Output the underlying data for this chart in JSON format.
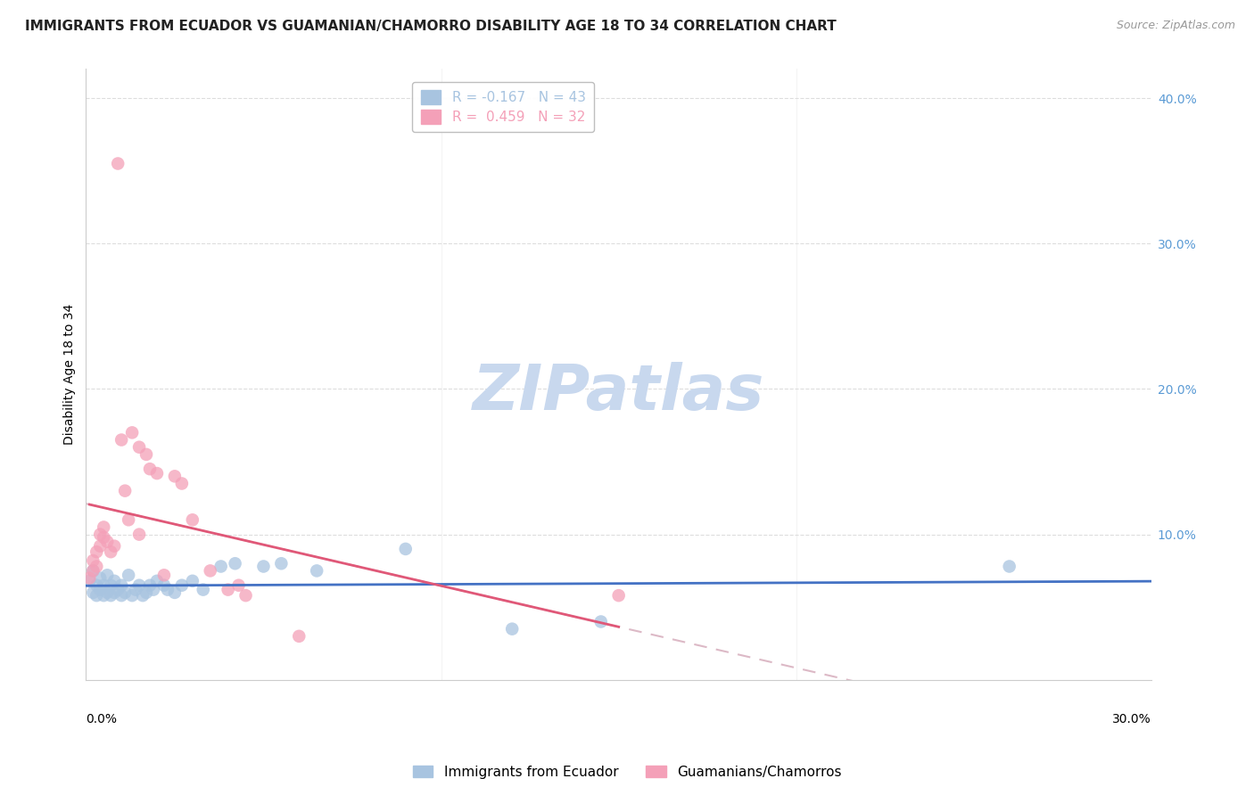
{
  "title": "IMMIGRANTS FROM ECUADOR VS GUAMANIAN/CHAMORRO DISABILITY AGE 18 TO 34 CORRELATION CHART",
  "source": "Source: ZipAtlas.com",
  "ylabel": "Disability Age 18 to 34",
  "xlabel_bottom_left": "0.0%",
  "xlabel_bottom_right": "30.0%",
  "watermark": "ZIPatlas",
  "legend_items": [
    {
      "label": "R = -0.167   N = 43",
      "color": "#a8c4e0"
    },
    {
      "label": "R =  0.459   N = 32",
      "color": "#f4a0b8"
    }
  ],
  "xlim": [
    0.0,
    0.3
  ],
  "ylim": [
    0.0,
    0.42
  ],
  "ecuador_color": "#a8c4e0",
  "guam_color": "#f4a0b8",
  "ecuador_line_color": "#4472c4",
  "guam_line_color": "#e05878",
  "guam_dash_color": "#d4a8b8",
  "ecuador_scatter": [
    [
      0.001,
      0.068
    ],
    [
      0.002,
      0.06
    ],
    [
      0.002,
      0.075
    ],
    [
      0.003,
      0.058
    ],
    [
      0.003,
      0.065
    ],
    [
      0.004,
      0.062
    ],
    [
      0.004,
      0.07
    ],
    [
      0.005,
      0.058
    ],
    [
      0.005,
      0.065
    ],
    [
      0.006,
      0.06
    ],
    [
      0.006,
      0.072
    ],
    [
      0.007,
      0.065
    ],
    [
      0.007,
      0.058
    ],
    [
      0.008,
      0.06
    ],
    [
      0.008,
      0.068
    ],
    [
      0.009,
      0.062
    ],
    [
      0.01,
      0.058
    ],
    [
      0.01,
      0.065
    ],
    [
      0.011,
      0.06
    ],
    [
      0.012,
      0.072
    ],
    [
      0.013,
      0.058
    ],
    [
      0.014,
      0.062
    ],
    [
      0.015,
      0.065
    ],
    [
      0.016,
      0.058
    ],
    [
      0.017,
      0.06
    ],
    [
      0.018,
      0.065
    ],
    [
      0.019,
      0.062
    ],
    [
      0.02,
      0.068
    ],
    [
      0.022,
      0.065
    ],
    [
      0.023,
      0.062
    ],
    [
      0.025,
      0.06
    ],
    [
      0.027,
      0.065
    ],
    [
      0.03,
      0.068
    ],
    [
      0.033,
      0.062
    ],
    [
      0.038,
      0.078
    ],
    [
      0.042,
      0.08
    ],
    [
      0.05,
      0.078
    ],
    [
      0.055,
      0.08
    ],
    [
      0.065,
      0.075
    ],
    [
      0.09,
      0.09
    ],
    [
      0.12,
      0.035
    ],
    [
      0.145,
      0.04
    ],
    [
      0.26,
      0.078
    ]
  ],
  "guam_scatter": [
    [
      0.001,
      0.07
    ],
    [
      0.002,
      0.075
    ],
    [
      0.002,
      0.082
    ],
    [
      0.003,
      0.078
    ],
    [
      0.003,
      0.088
    ],
    [
      0.004,
      0.092
    ],
    [
      0.004,
      0.1
    ],
    [
      0.005,
      0.098
    ],
    [
      0.005,
      0.105
    ],
    [
      0.006,
      0.095
    ],
    [
      0.007,
      0.088
    ],
    [
      0.008,
      0.092
    ],
    [
      0.009,
      0.355
    ],
    [
      0.01,
      0.165
    ],
    [
      0.011,
      0.13
    ],
    [
      0.012,
      0.11
    ],
    [
      0.013,
      0.17
    ],
    [
      0.015,
      0.16
    ],
    [
      0.015,
      0.1
    ],
    [
      0.017,
      0.155
    ],
    [
      0.018,
      0.145
    ],
    [
      0.02,
      0.142
    ],
    [
      0.022,
      0.072
    ],
    [
      0.025,
      0.14
    ],
    [
      0.027,
      0.135
    ],
    [
      0.03,
      0.11
    ],
    [
      0.035,
      0.075
    ],
    [
      0.04,
      0.062
    ],
    [
      0.043,
      0.065
    ],
    [
      0.045,
      0.058
    ],
    [
      0.06,
      0.03
    ],
    [
      0.15,
      0.058
    ]
  ],
  "ecuador_R": -0.167,
  "guam_R": 0.459,
  "ecuador_N": 43,
  "guam_N": 32,
  "title_fontsize": 11,
  "source_fontsize": 9,
  "axis_label_fontsize": 10,
  "tick_fontsize": 10,
  "legend_fontsize": 11,
  "watermark_fontsize": 52,
  "watermark_color": "#c8d8ee",
  "background_color": "#ffffff",
  "grid_color": "#dddddd",
  "right_ytick_color": "#5b9bd5",
  "bottom_legend_color_ecuador": "#a8c4e0",
  "bottom_legend_color_guam": "#f4a0b8"
}
